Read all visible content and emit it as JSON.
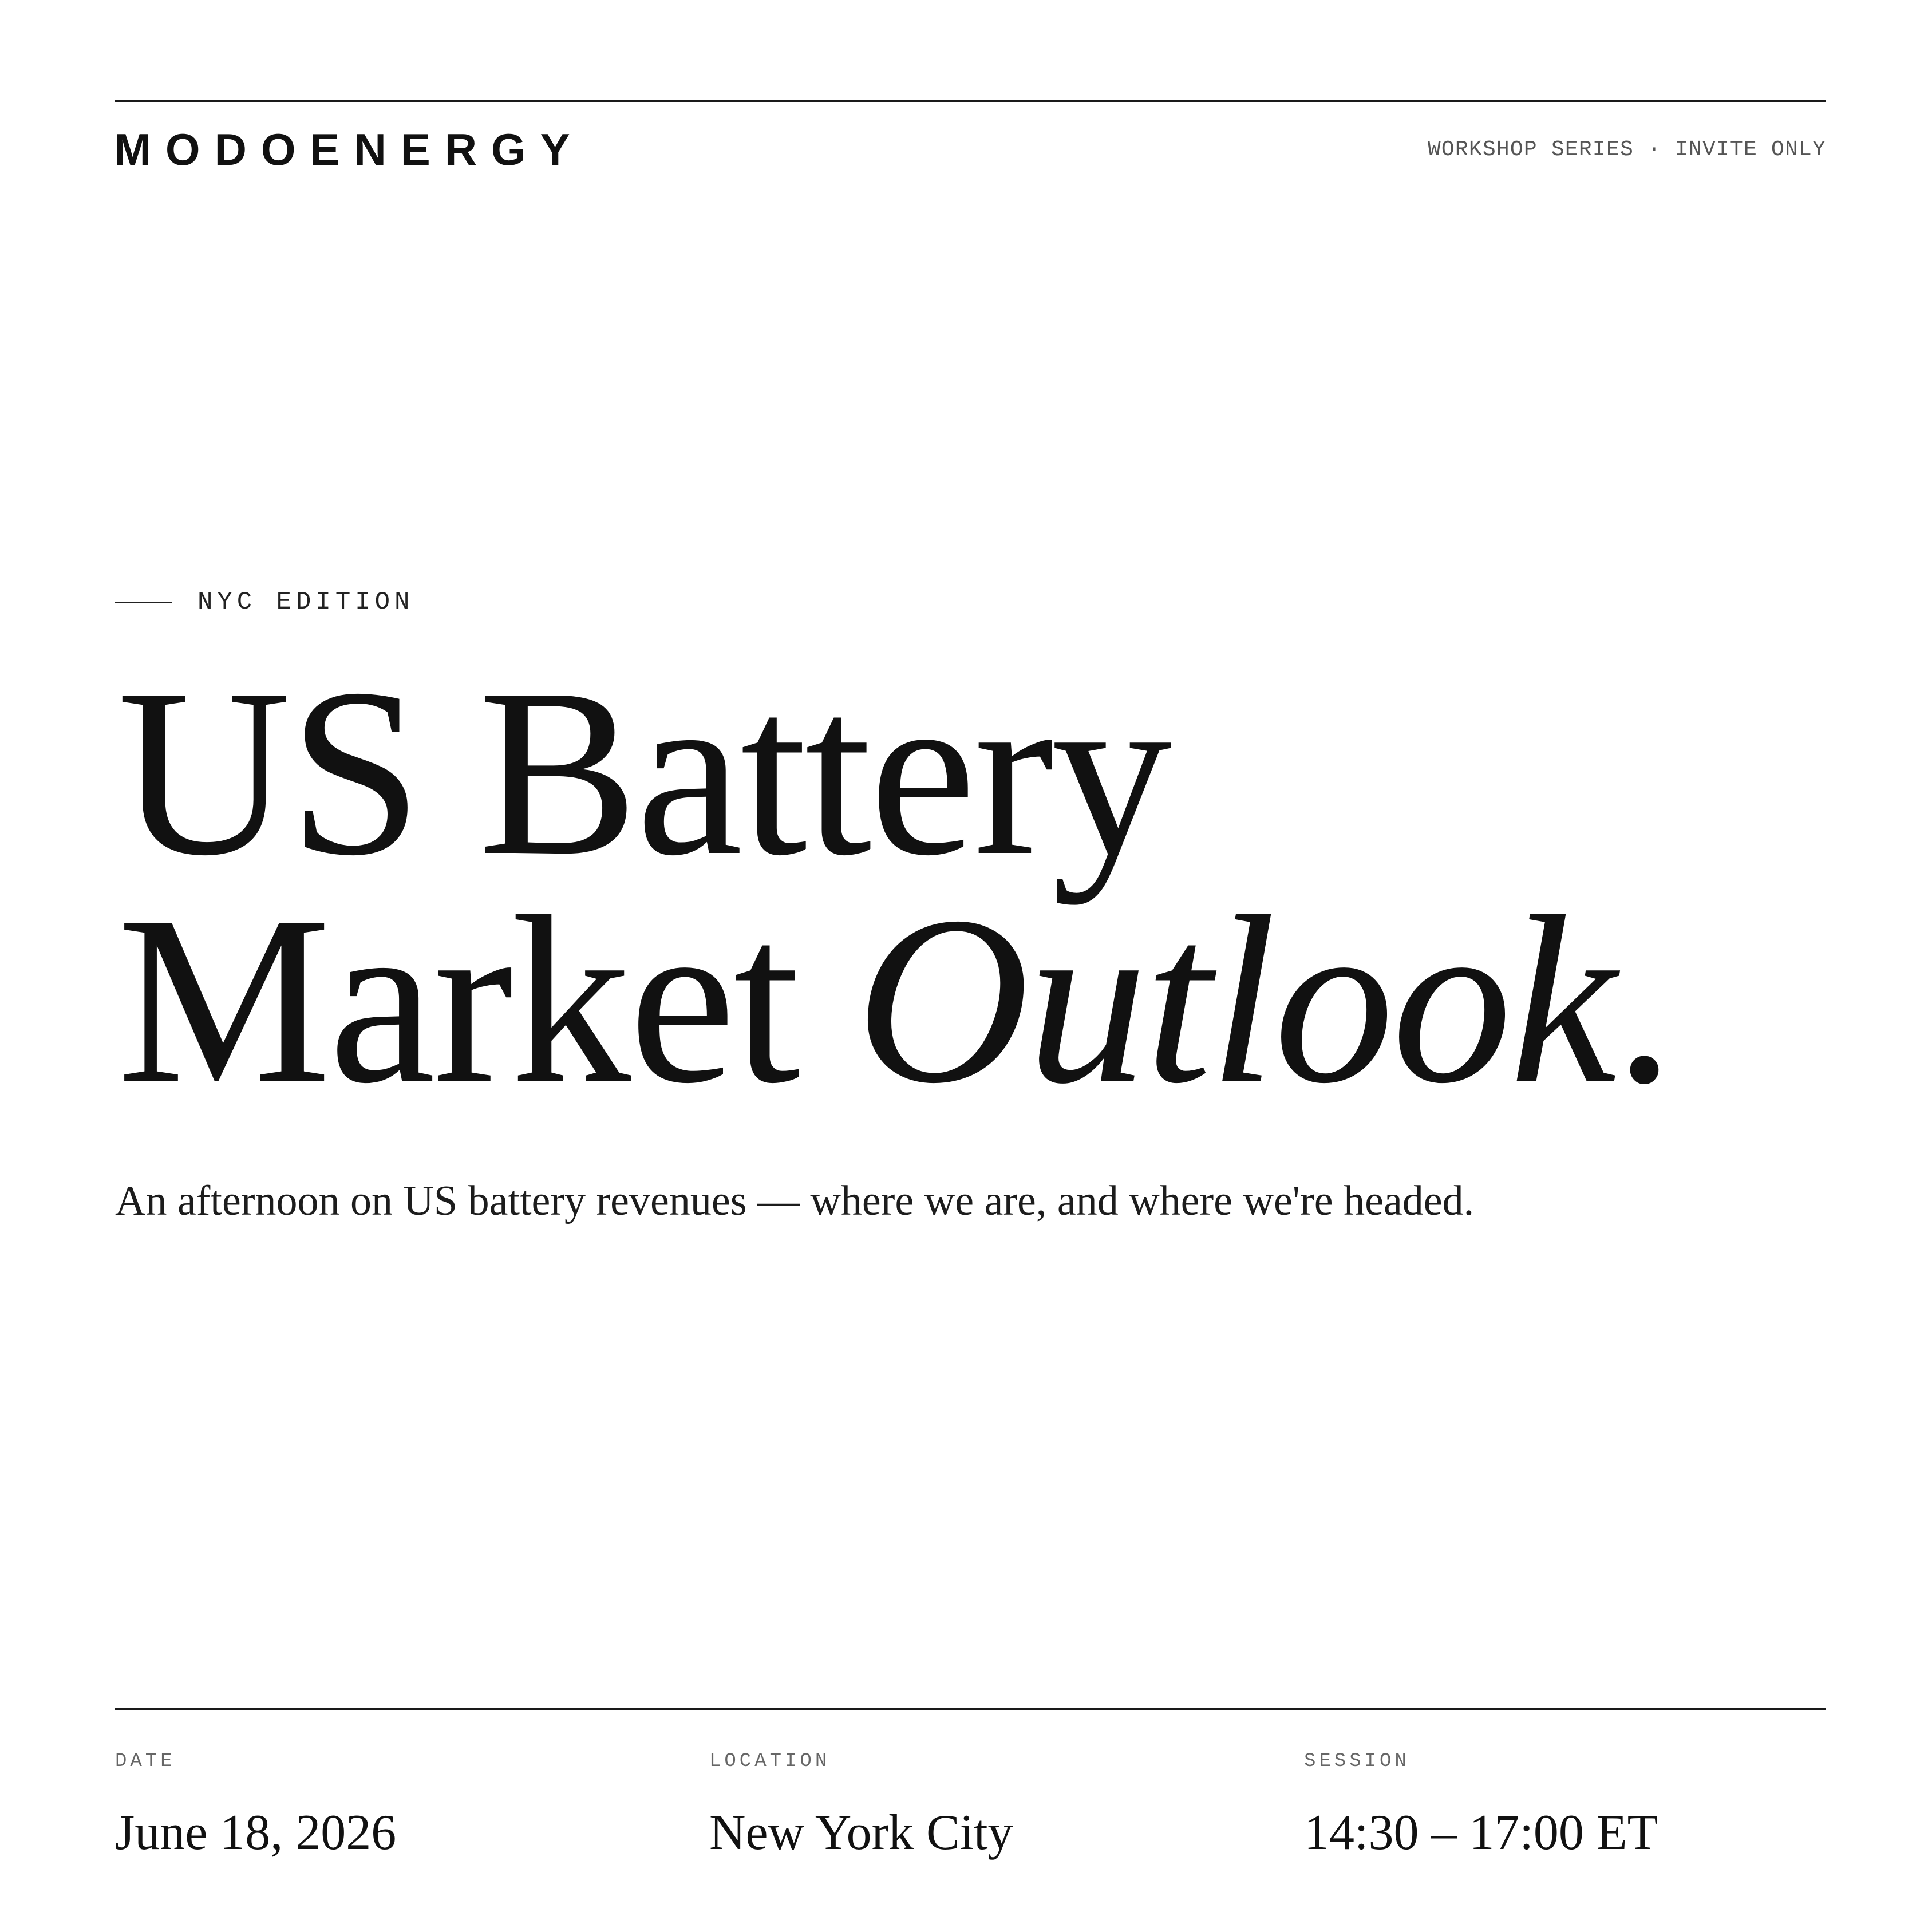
{
  "header": {
    "logo": "MODOENERGY",
    "tagline": "WORKSHOP SERIES · INVITE ONLY"
  },
  "hero": {
    "eyebrow": "NYC EDITION",
    "title_line1": "US Battery",
    "title_line2_roman": "Market ",
    "title_line2_italic": "Outlook",
    "title_end": ".",
    "subtitle": "An afternoon on US battery revenues — where we are, and where we're headed."
  },
  "details": [
    {
      "label": "DATE",
      "value": "June 18, 2026"
    },
    {
      "label": "LOCATION",
      "value": "New York City"
    },
    {
      "label": "SESSION",
      "value": "14:30 – 17:00 ET"
    }
  ],
  "colors": {
    "text": "#111111",
    "muted": "#555555",
    "background": "#ffffff"
  }
}
